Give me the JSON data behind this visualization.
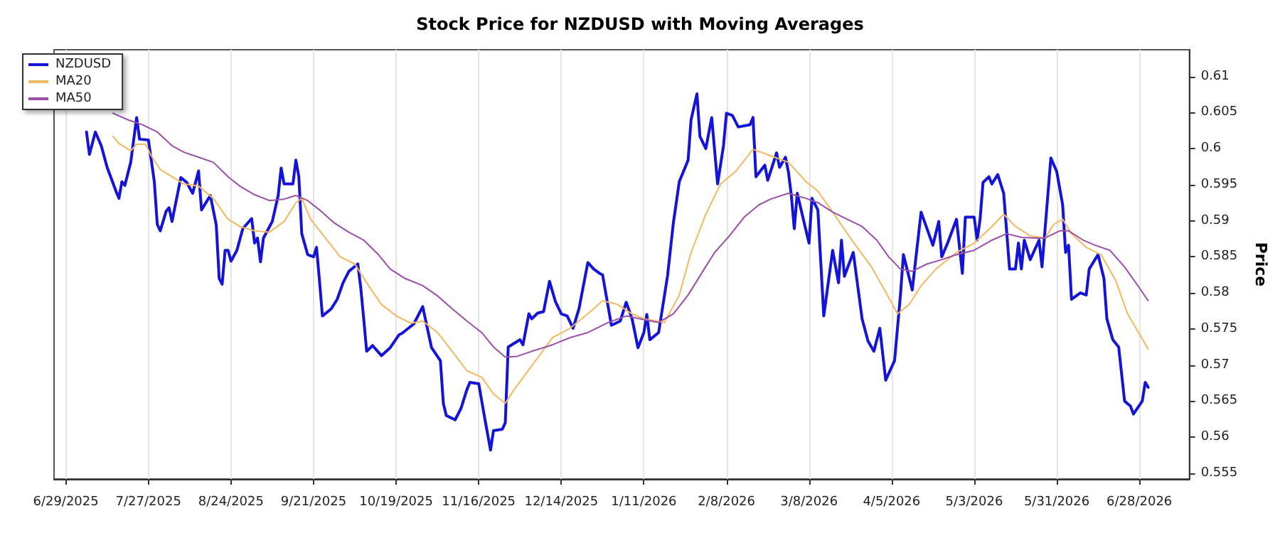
{
  "chart_data": {
    "type": "line",
    "title": "Stock Price for NZDUSD with Moving Averages",
    "ylabel": "Price",
    "xlim": [
      "2025-06-25",
      "2026-07-15"
    ],
    "xticks": [
      {
        "value": "2025-06-29",
        "label": "6/29/2025"
      },
      {
        "value": "2025-07-27",
        "label": "7/27/2025"
      },
      {
        "value": "2025-08-24",
        "label": "8/24/2025"
      },
      {
        "value": "2025-09-21",
        "label": "9/21/2025"
      },
      {
        "value": "2025-10-19",
        "label": "10/19/2025"
      },
      {
        "value": "2025-11-16",
        "label": "11/16/2025"
      },
      {
        "value": "2025-12-14",
        "label": "12/14/2025"
      },
      {
        "value": "2026-01-11",
        "label": "1/11/2026"
      },
      {
        "value": "2026-02-08",
        "label": "2/8/2026"
      },
      {
        "value": "2026-03-08",
        "label": "3/8/2026"
      },
      {
        "value": "2026-04-05",
        "label": "4/5/2026"
      },
      {
        "value": "2026-05-03",
        "label": "5/3/2026"
      },
      {
        "value": "2026-05-31",
        "label": "5/31/2026"
      },
      {
        "value": "2026-06-28",
        "label": "6/28/2026"
      }
    ],
    "ylim": [
      0.5542,
      0.6137
    ],
    "yticks": [
      0.555,
      0.56,
      0.565,
      0.57,
      0.575,
      0.58,
      0.585,
      0.59,
      0.595,
      0.6,
      0.605,
      0.61
    ],
    "grid": "x",
    "legend": "top left",
    "marker": "none",
    "line_style": "solid",
    "series": [
      {
        "name": "NZDUSD",
        "color": "#1414d8",
        "x": [
          "2025-07-06",
          "2025-07-07",
          "2025-07-09",
          "2025-07-11",
          "2025-07-13",
          "2025-07-16",
          "2025-07-17",
          "2025-07-18",
          "2025-07-19",
          "2025-07-21",
          "2025-07-23",
          "2025-07-24",
          "2025-07-27",
          "2025-07-29",
          "2025-07-30",
          "2025-07-31",
          "2025-08-02",
          "2025-08-03",
          "2025-08-04",
          "2025-08-07",
          "2025-08-09",
          "2025-08-11",
          "2025-08-13",
          "2025-08-14",
          "2025-08-17",
          "2025-08-19",
          "2025-08-20",
          "2025-08-21",
          "2025-08-22",
          "2025-08-23",
          "2025-08-24",
          "2025-08-26",
          "2025-08-28",
          "2025-08-31",
          "2025-09-01",
          "2025-09-02",
          "2025-09-03",
          "2025-09-04",
          "2025-09-07",
          "2025-09-09",
          "2025-09-10",
          "2025-09-11",
          "2025-09-14",
          "2025-09-15",
          "2025-09-16",
          "2025-09-17",
          "2025-09-19",
          "2025-09-21",
          "2025-09-22",
          "2025-09-23",
          "2025-09-24",
          "2025-09-27",
          "2025-09-29",
          "2025-10-01",
          "2025-10-03",
          "2025-10-06",
          "2025-10-07",
          "2025-10-08",
          "2025-10-09",
          "2025-10-11",
          "2025-10-14",
          "2025-10-17",
          "2025-10-20",
          "2025-10-21",
          "2025-10-25",
          "2025-10-28",
          "2025-10-31",
          "2025-11-03",
          "2025-11-04",
          "2025-11-05",
          "2025-11-08",
          "2025-11-10",
          "2025-11-12",
          "2025-11-13",
          "2025-11-16",
          "2025-11-18",
          "2025-11-20",
          "2025-11-21",
          "2025-11-24",
          "2025-11-25",
          "2025-11-26",
          "2025-11-30",
          "2025-12-01",
          "2025-12-03",
          "2025-12-04",
          "2025-12-06",
          "2025-12-08",
          "2025-12-10",
          "2025-12-12",
          "2025-12-14",
          "2025-12-16",
          "2025-12-18",
          "2025-12-20",
          "2025-12-23",
          "2025-12-25",
          "2025-12-27",
          "2025-12-28",
          "2025-12-30",
          "2025-12-31",
          "2026-01-03",
          "2026-01-05",
          "2026-01-07",
          "2026-01-09",
          "2026-01-11",
          "2026-01-12",
          "2026-01-13",
          "2026-01-16",
          "2026-01-17",
          "2026-01-19",
          "2026-01-21",
          "2026-01-23",
          "2026-01-26",
          "2026-01-27",
          "2026-01-29",
          "2026-01-30",
          "2026-02-01",
          "2026-02-03",
          "2026-02-05",
          "2026-02-07",
          "2026-02-08",
          "2026-02-10",
          "2026-02-12",
          "2026-02-16",
          "2026-02-17",
          "2026-02-18",
          "2026-02-21",
          "2026-02-22",
          "2026-02-25",
          "2026-02-26",
          "2026-02-28",
          "2026-03-01",
          "2026-03-02",
          "2026-03-03",
          "2026-03-04",
          "2026-03-07",
          "2026-03-08",
          "2026-03-09",
          "2026-03-11",
          "2026-03-13",
          "2026-03-16",
          "2026-03-18",
          "2026-03-19",
          "2026-03-20",
          "2026-03-23",
          "2026-03-26",
          "2026-03-28",
          "2026-03-30",
          "2026-04-01",
          "2026-04-03",
          "2026-04-06",
          "2026-04-08",
          "2026-04-09",
          "2026-04-12",
          "2026-04-15",
          "2026-04-19",
          "2026-04-21",
          "2026-04-22",
          "2026-04-24",
          "2026-04-27",
          "2026-04-29",
          "2026-04-30",
          "2026-05-03",
          "2026-05-04",
          "2026-05-05",
          "2026-05-06",
          "2026-05-08",
          "2026-05-09",
          "2026-05-11",
          "2026-05-13",
          "2026-05-15",
          "2026-05-17",
          "2026-05-18",
          "2026-05-19",
          "2026-05-20",
          "2026-05-22",
          "2026-05-25",
          "2026-05-26",
          "2026-05-29",
          "2026-05-31",
          "2026-06-02",
          "2026-06-03",
          "2026-06-04",
          "2026-06-05",
          "2026-06-08",
          "2026-06-10",
          "2026-06-11",
          "2026-06-14",
          "2026-06-16",
          "2026-06-17",
          "2026-06-19",
          "2026-06-21",
          "2026-06-23",
          "2026-06-25",
          "2026-06-26",
          "2026-06-29",
          "2026-06-30",
          "2026-07-01"
        ],
        "values": [
          0.6023,
          0.5992,
          0.6023,
          0.6004,
          0.5974,
          0.5941,
          0.5931,
          0.5954,
          0.5949,
          0.5981,
          0.6043,
          0.6013,
          0.6012,
          0.5954,
          0.5895,
          0.5886,
          0.5913,
          0.5918,
          0.5899,
          0.596,
          0.5953,
          0.5938,
          0.5969,
          0.5915,
          0.5935,
          0.5894,
          0.582,
          0.5812,
          0.5859,
          0.5859,
          0.5844,
          0.5859,
          0.5889,
          0.5903,
          0.5869,
          0.5876,
          0.5843,
          0.5876,
          0.5899,
          0.5935,
          0.5973,
          0.5951,
          0.5951,
          0.5984,
          0.5961,
          0.5882,
          0.5853,
          0.585,
          0.5863,
          0.5817,
          0.5768,
          0.5778,
          0.5791,
          0.5814,
          0.583,
          0.584,
          0.5807,
          0.5764,
          0.5719,
          0.5727,
          0.5713,
          0.5724,
          0.5742,
          0.5744,
          0.5757,
          0.5781,
          0.5724,
          0.5706,
          0.5647,
          0.563,
          0.5624,
          0.564,
          0.5666,
          0.5676,
          0.5674,
          0.5627,
          0.5582,
          0.5609,
          0.5611,
          0.562,
          0.5725,
          0.5735,
          0.5728,
          0.5771,
          0.5764,
          0.5772,
          0.5774,
          0.5816,
          0.5788,
          0.5771,
          0.5768,
          0.5751,
          0.5778,
          0.5842,
          0.5833,
          0.5827,
          0.5825,
          0.5778,
          0.5755,
          0.5761,
          0.5787,
          0.5764,
          0.5724,
          0.5745,
          0.577,
          0.5735,
          0.5745,
          0.5771,
          0.5823,
          0.5897,
          0.5954,
          0.5984,
          0.604,
          0.6076,
          0.6017,
          0.6,
          0.6043,
          0.5951,
          0.6004,
          0.6049,
          0.6046,
          0.603,
          0.6033,
          0.6043,
          0.5961,
          0.5977,
          0.5956,
          0.5994,
          0.5974,
          0.5988,
          0.5968,
          0.5935,
          0.5889,
          0.5938,
          0.5886,
          0.5869,
          0.5931,
          0.5915,
          0.5768,
          0.5859,
          0.5814,
          0.5873,
          0.5823,
          0.5856,
          0.5764,
          0.5733,
          0.5719,
          0.5751,
          0.5679,
          0.5706,
          0.5797,
          0.5853,
          0.5804,
          0.5912,
          0.5866,
          0.5899,
          0.585,
          0.5869,
          0.5902,
          0.5827,
          0.5905,
          0.5905,
          0.5873,
          0.5902,
          0.5953,
          0.5961,
          0.5951,
          0.5964,
          0.5938,
          0.5833,
          0.5833,
          0.5869,
          0.5833,
          0.5873,
          0.5846,
          0.5873,
          0.5836,
          0.5987,
          0.5968,
          0.5922,
          0.5856,
          0.5866,
          0.5791,
          0.58,
          0.5797,
          0.5833,
          0.5853,
          0.582,
          0.5764,
          0.5735,
          0.5725,
          0.565,
          0.5643,
          0.5632,
          0.565,
          0.5676,
          0.5669
        ]
      },
      {
        "name": "MA20",
        "color": "#f4b860",
        "x": [
          "2025-07-15",
          "2025-07-17",
          "2025-07-21",
          "2025-07-23",
          "2025-07-26",
          "2025-07-28",
          "2025-07-31",
          "2025-08-04",
          "2025-08-08",
          "2025-08-13",
          "2025-08-18",
          "2025-08-23",
          "2025-08-27",
          "2025-09-01",
          "2025-09-06",
          "2025-09-11",
          "2025-09-15",
          "2025-09-17",
          "2025-09-20",
          "2025-09-25",
          "2025-09-30",
          "2025-10-05",
          "2025-10-09",
          "2025-10-14",
          "2025-10-19",
          "2025-10-24",
          "2025-10-28",
          "2025-11-02",
          "2025-11-07",
          "2025-11-12",
          "2025-11-17",
          "2025-11-21",
          "2025-11-25",
          "2025-11-28",
          "2025-12-04",
          "2025-12-11",
          "2025-12-17",
          "2025-12-23",
          "2025-12-28",
          "2026-01-02",
          "2026-01-07",
          "2026-01-11",
          "2026-01-18",
          "2026-01-23",
          "2026-01-27",
          "2026-02-01",
          "2026-02-06",
          "2026-02-11",
          "2026-02-17",
          "2026-02-23",
          "2026-03-01",
          "2026-03-07",
          "2026-03-11",
          "2026-03-16",
          "2026-03-22",
          "2026-03-29",
          "2026-04-03",
          "2026-04-07",
          "2026-04-11",
          "2026-04-15",
          "2026-04-20",
          "2026-04-27",
          "2026-05-03",
          "2026-05-09",
          "2026-05-13",
          "2026-05-17",
          "2026-05-22",
          "2026-05-27",
          "2026-05-30",
          "2026-06-02",
          "2026-06-05",
          "2026-06-10",
          "2026-06-15",
          "2026-06-20",
          "2026-06-24",
          "2026-07-01"
        ],
        "values": [
          0.6017,
          0.6007,
          0.5997,
          0.6006,
          0.6006,
          0.599,
          0.5971,
          0.5961,
          0.5951,
          0.5948,
          0.5931,
          0.5902,
          0.5892,
          0.5886,
          0.5884,
          0.5899,
          0.5925,
          0.5931,
          0.5902,
          0.5876,
          0.585,
          0.584,
          0.5814,
          0.5784,
          0.5768,
          0.5758,
          0.5761,
          0.5745,
          0.5719,
          0.5692,
          0.5683,
          0.566,
          0.5647,
          0.5666,
          0.5699,
          0.5738,
          0.5751,
          0.5771,
          0.5789,
          0.5784,
          0.5771,
          0.5764,
          0.5759,
          0.5797,
          0.5856,
          0.5909,
          0.5951,
          0.5968,
          0.5999,
          0.599,
          0.5981,
          0.5954,
          0.5941,
          0.5912,
          0.5876,
          0.5837,
          0.5801,
          0.5771,
          0.5784,
          0.581,
          0.5833,
          0.5856,
          0.5869,
          0.5892,
          0.5909,
          0.5892,
          0.5879,
          0.5876,
          0.5895,
          0.5902,
          0.5882,
          0.5863,
          0.5853,
          0.5817,
          0.5771,
          0.5722
        ]
      },
      {
        "name": "MA50",
        "color": "#9b4fa8",
        "x": [
          "2025-07-15",
          "2025-07-20",
          "2025-07-25",
          "2025-07-30",
          "2025-08-04",
          "2025-08-08",
          "2025-08-13",
          "2025-08-18",
          "2025-08-23",
          "2025-08-27",
          "2025-09-01",
          "2025-09-06",
          "2025-09-11",
          "2025-09-15",
          "2025-09-19",
          "2025-09-23",
          "2025-09-28",
          "2025-10-03",
          "2025-10-08",
          "2025-10-13",
          "2025-10-17",
          "2025-10-22",
          "2025-10-28",
          "2025-11-02",
          "2025-11-07",
          "2025-11-12",
          "2025-11-17",
          "2025-11-21",
          "2025-11-25",
          "2025-11-29",
          "2025-12-04",
          "2025-12-11",
          "2025-12-17",
          "2025-12-23",
          "2025-12-30",
          "2026-01-05",
          "2026-01-11",
          "2026-01-16",
          "2026-01-21",
          "2026-01-26",
          "2026-01-31",
          "2026-02-04",
          "2026-02-09",
          "2026-02-14",
          "2026-02-19",
          "2026-02-23",
          "2026-03-01",
          "2026-03-07",
          "2026-03-11",
          "2026-03-16",
          "2026-03-21",
          "2026-03-26",
          "2026-03-31",
          "2026-04-04",
          "2026-04-08",
          "2026-04-12",
          "2026-04-17",
          "2026-04-22",
          "2026-04-27",
          "2026-05-03",
          "2026-05-09",
          "2026-05-14",
          "2026-05-19",
          "2026-05-24",
          "2026-05-27",
          "2026-06-01",
          "2026-06-04",
          "2026-06-09",
          "2026-06-13",
          "2026-06-18",
          "2026-06-23",
          "2026-06-28",
          "2026-07-01"
        ],
        "values": [
          0.6049,
          0.604,
          0.6033,
          0.6023,
          0.6004,
          0.5995,
          0.5988,
          0.5981,
          0.5961,
          0.5948,
          0.5936,
          0.5928,
          0.593,
          0.5935,
          0.5928,
          0.5915,
          0.5897,
          0.5884,
          0.5873,
          0.5853,
          0.5833,
          0.582,
          0.581,
          0.5796,
          0.5778,
          0.5761,
          0.5745,
          0.5725,
          0.5711,
          0.5712,
          0.5719,
          0.5728,
          0.5738,
          0.5745,
          0.5759,
          0.5768,
          0.5763,
          0.5759,
          0.5771,
          0.5797,
          0.583,
          0.5856,
          0.5879,
          0.5905,
          0.5922,
          0.593,
          0.5938,
          0.5931,
          0.5925,
          0.5912,
          0.5902,
          0.5892,
          0.5873,
          0.585,
          0.5833,
          0.583,
          0.584,
          0.5846,
          0.5853,
          0.5859,
          0.5873,
          0.5882,
          0.5877,
          0.5876,
          0.5876,
          0.5886,
          0.5886,
          0.5873,
          0.5866,
          0.5859,
          0.5836,
          0.5807,
          0.5789
        ]
      }
    ]
  }
}
